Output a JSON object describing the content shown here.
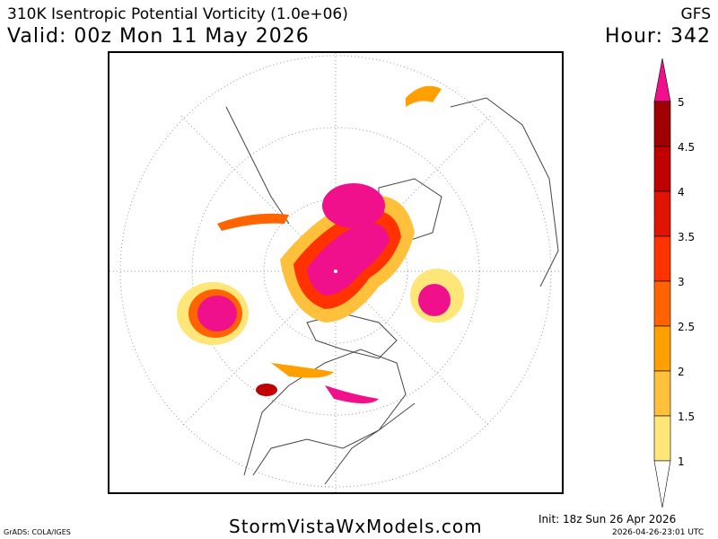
{
  "header": {
    "title": "310K Isentropic Potential Vorticity (1.0e+06)",
    "model": "GFS",
    "valid": "Valid: 00z Mon 11 May 2026",
    "hour": "Hour: 342"
  },
  "footer": {
    "software": "GrADS: COLA/IGES",
    "site": "StormVistaWxModels.com",
    "init": "Init: 18z Sun 26 Apr 2026",
    "timestamp": "2026-04-26-23:01 UTC"
  },
  "colorbar": {
    "labels": [
      "5",
      "4.5",
      "4",
      "3.5",
      "3",
      "2.5",
      "2",
      "1.5",
      "1"
    ],
    "over_color": "#f0108c",
    "colors": [
      "#a00000",
      "#c00000",
      "#e01400",
      "#ff3200",
      "#ff6400",
      "#ffa000",
      "#ffc03c",
      "#ffe678"
    ],
    "under_color": "#ffffff"
  }
}
